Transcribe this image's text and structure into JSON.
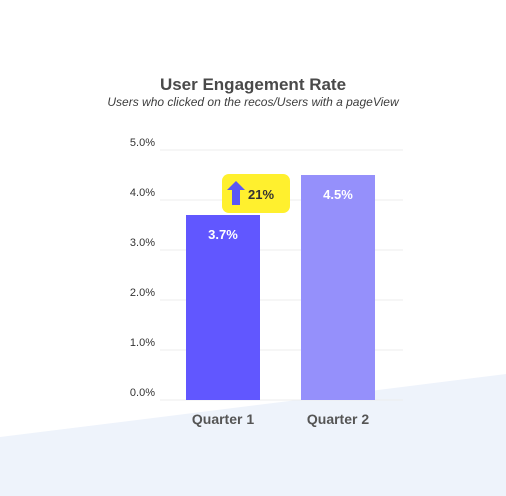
{
  "chart_data": {
    "type": "bar",
    "title": "User Engagement Rate",
    "subtitle": "Users who clicked on the recos/Users with a pageView",
    "categories": [
      "Quarter 1",
      "Quarter 2"
    ],
    "values": [
      3.7,
      4.5
    ],
    "data_labels": [
      "3.7%",
      "4.5%"
    ],
    "ylim": [
      0,
      5
    ],
    "yticks": [
      0,
      1,
      2,
      3,
      4,
      5
    ],
    "ytick_labels": [
      "0.0%",
      "1.0%",
      "2.0%",
      "3.0%",
      "4.0%",
      "5.0%"
    ],
    "grid": true,
    "bar_colors": [
      "#6157ff",
      "#9590fb"
    ],
    "annotation": {
      "text": "21%",
      "icon": "arrow-up-icon",
      "background": "#fff02e",
      "arrow_color": "#5b57f5"
    }
  }
}
